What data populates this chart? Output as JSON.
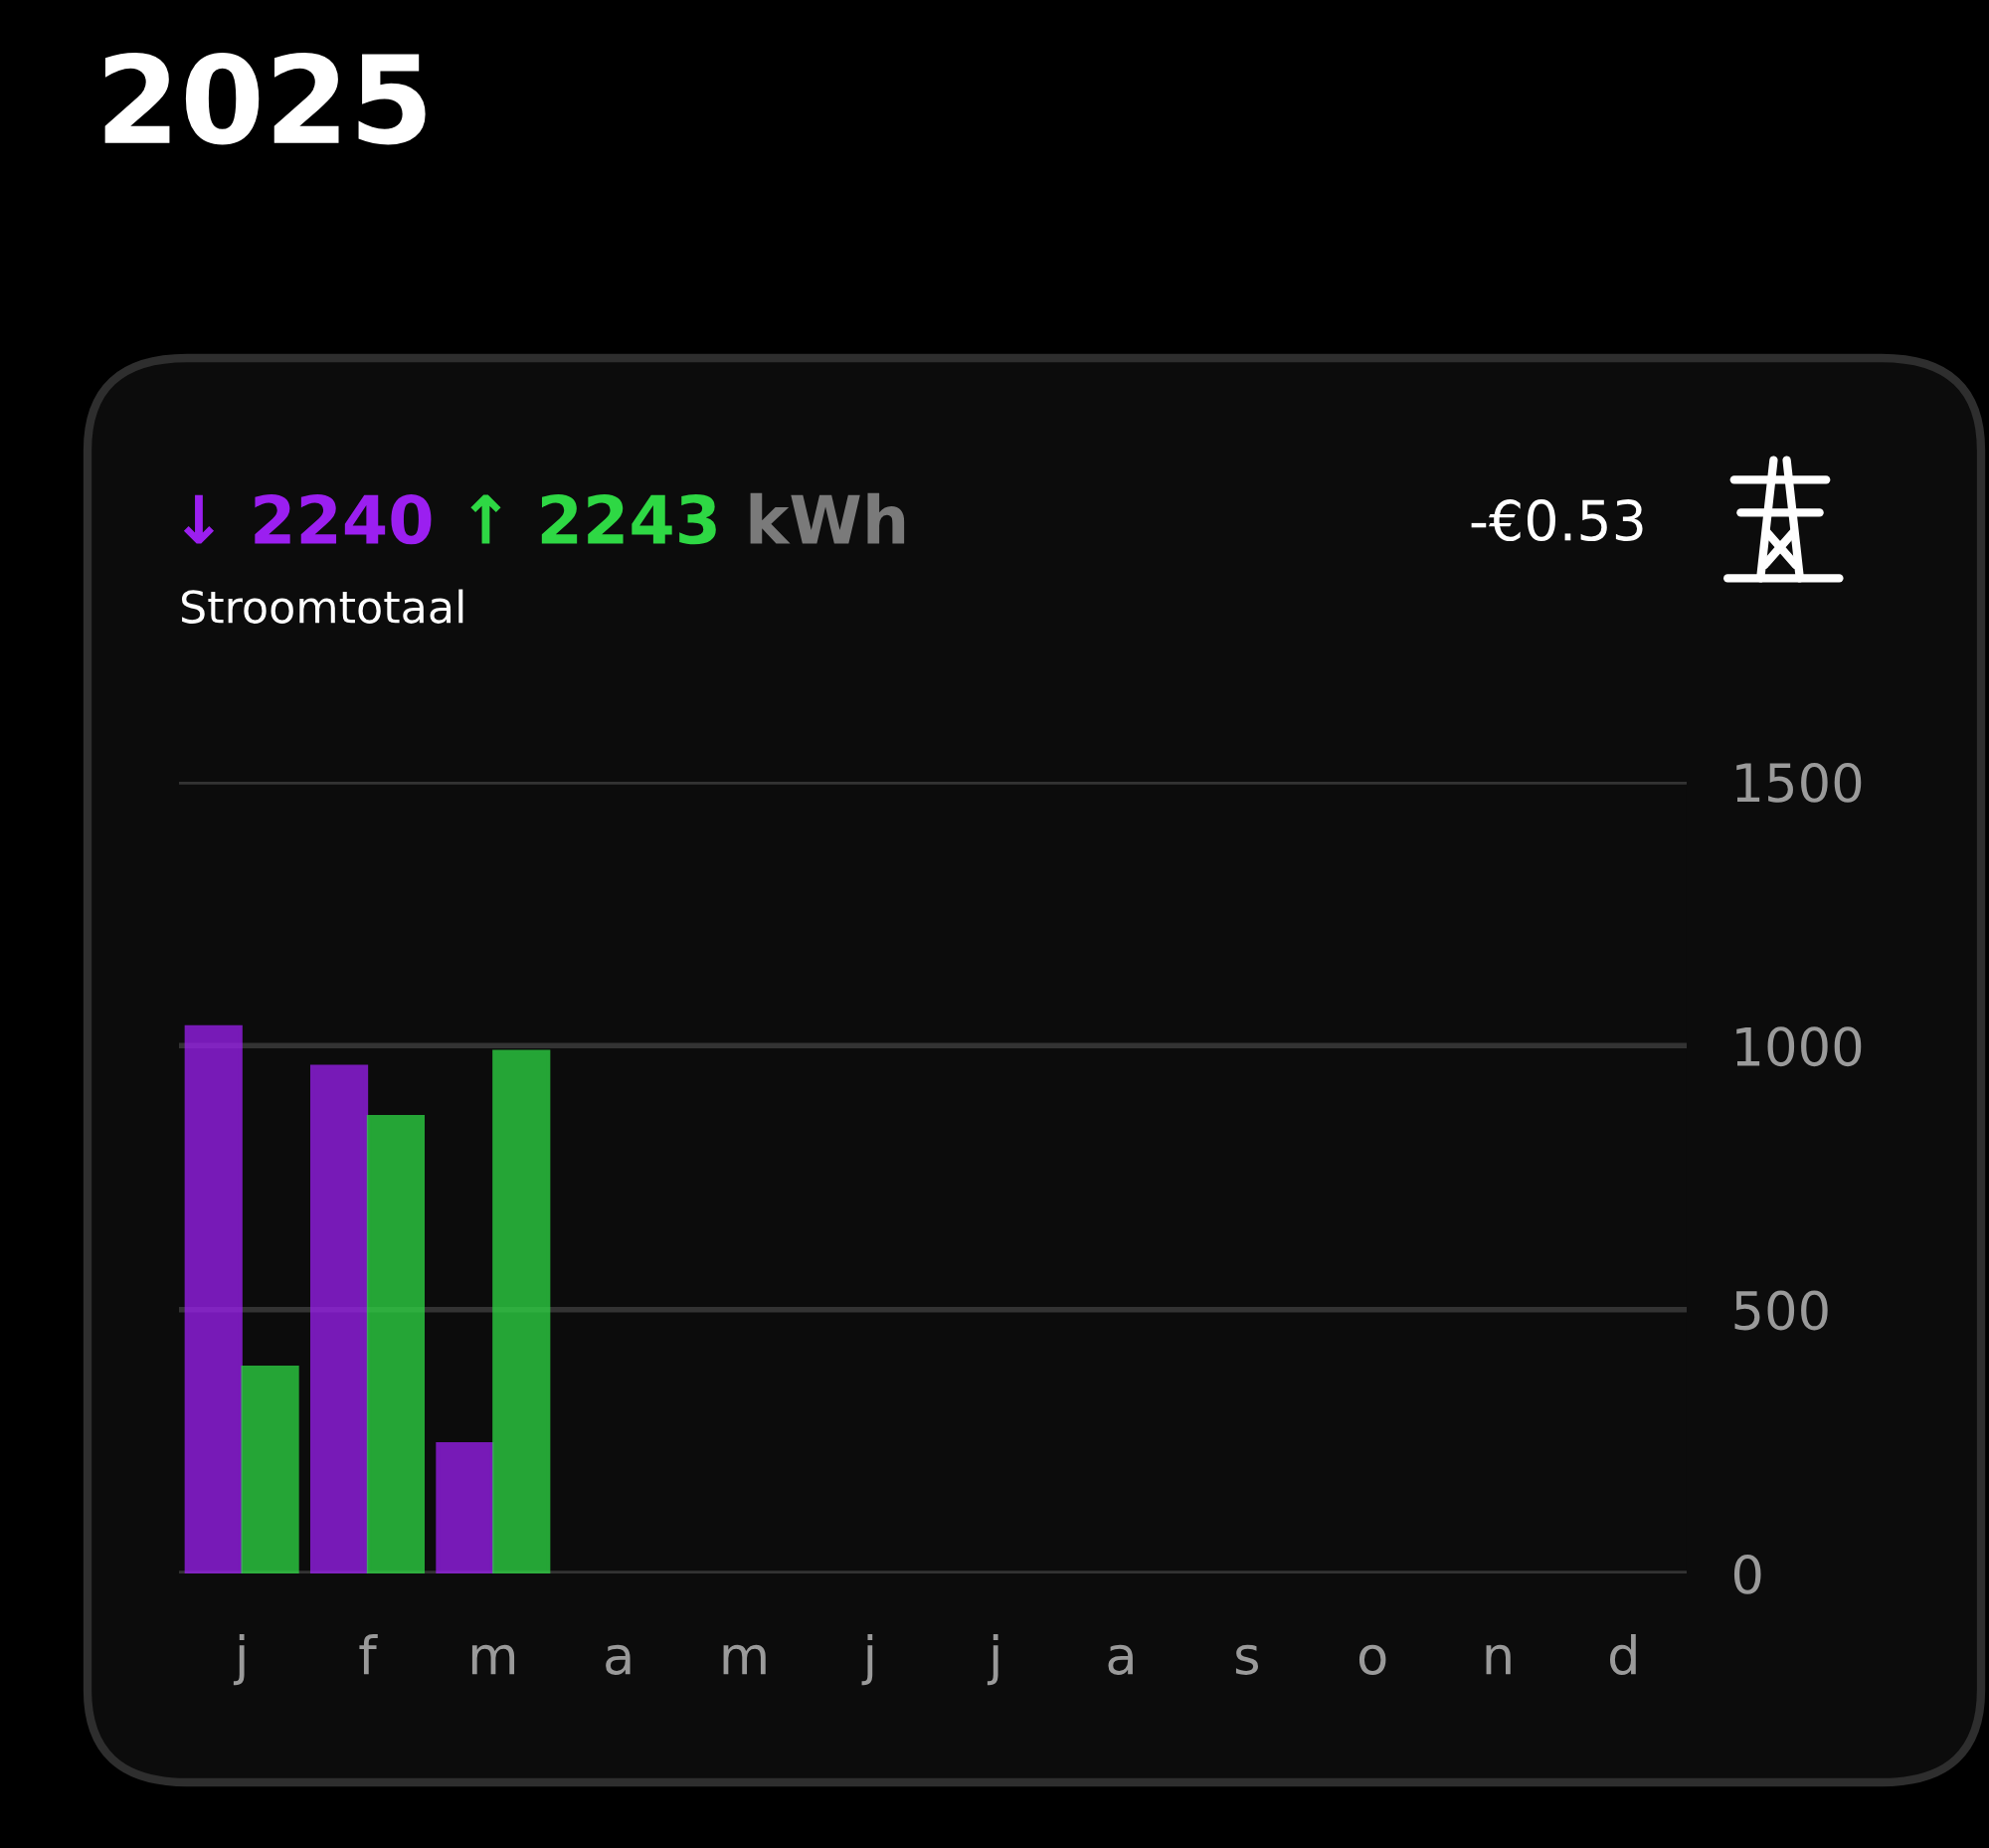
{
  "chart_data": {
    "type": "bar",
    "title": "2025",
    "subtitle": "Stroomtotaal",
    "annotations": [
      "↓ 2240",
      "↑ 2243",
      "kWh",
      "-€0.53"
    ],
    "categories": [
      "j",
      "f",
      "m",
      "a",
      "m",
      "j",
      "j",
      "a",
      "s",
      "o",
      "n",
      "d"
    ],
    "series": [
      {
        "color": "#9b1ff0",
        "values": [
          1035,
          960,
          245,
          null,
          null,
          null,
          null,
          null,
          null,
          null,
          null,
          null
        ]
      },
      {
        "color": "#2ed844",
        "values": [
          390,
          865,
          988,
          null,
          null,
          null,
          null,
          null,
          null,
          null,
          null,
          null
        ]
      }
    ],
    "ylim": [
      0,
      1500
    ],
    "yticks": [
      0,
      500,
      1000,
      1500
    ],
    "grid": "y",
    "legend": false
  }
}
